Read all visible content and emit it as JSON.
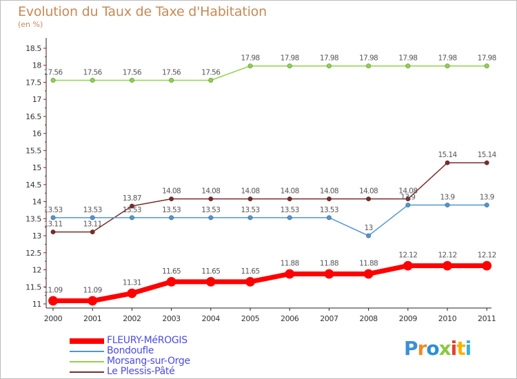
{
  "title": "Evolution du Taux de Taxe d'Habitation",
  "unit_label": "(en %)",
  "logo": {
    "text": "Proxiti"
  },
  "chart_data": {
    "type": "line",
    "x": [
      "2000",
      "2001",
      "2002",
      "2003",
      "2004",
      "2005",
      "2006",
      "2007",
      "2008",
      "2009",
      "2010",
      "2011"
    ],
    "ylim": [
      10.9,
      18.5
    ],
    "yticks": [
      "11",
      "11.5",
      "12",
      "12.5",
      "13",
      "13.5",
      "14",
      "14.5",
      "15",
      "15.5",
      "16",
      "16.5",
      "17",
      "17.5",
      "18",
      "18.5"
    ],
    "grid": false,
    "legend_position": "bottom-left",
    "series": [
      {
        "name": "FLEURY-MéROGIS",
        "color": "#ff0000",
        "emphasis": true,
        "values": [
          11.09,
          11.09,
          11.31,
          11.65,
          11.65,
          11.65,
          11.88,
          11.88,
          11.88,
          12.12,
          12.12,
          12.12
        ],
        "labels": [
          "11.09",
          "11.09",
          "11.31",
          "11.65",
          "11.65",
          "11.65",
          "11.88",
          "11.88",
          "11.88",
          "12.12",
          "12.12",
          "12.12"
        ]
      },
      {
        "name": "Bondoufle",
        "color": "#4f96d2",
        "values": [
          13.53,
          13.53,
          13.53,
          13.53,
          13.53,
          13.53,
          13.53,
          13.53,
          13.0,
          13.9,
          13.9,
          13.9
        ],
        "labels": [
          "13.53",
          "13.53",
          "13.53",
          "13.53",
          "13.53",
          "13.53",
          "13.53",
          "13.53",
          "13",
          "13.9",
          "13.9",
          "13.9"
        ]
      },
      {
        "name": "Morsang-sur-Orge",
        "color": "#8fd34a",
        "values": [
          17.56,
          17.56,
          17.56,
          17.56,
          17.56,
          17.98,
          17.98,
          17.98,
          17.98,
          17.98,
          17.98,
          17.98
        ],
        "labels": [
          "17.56",
          "17.56",
          "17.56",
          "17.56",
          "17.56",
          "17.98",
          "17.98",
          "17.98",
          "17.98",
          "17.98",
          "17.98",
          "17.98"
        ]
      },
      {
        "name": "Le Plessis-Pâté",
        "color": "#7a2b2b",
        "values": [
          13.11,
          13.11,
          13.87,
          14.08,
          14.08,
          14.08,
          14.08,
          14.08,
          14.08,
          14.08,
          15.14,
          15.14
        ],
        "labels": [
          "13.11",
          "13.11",
          "13.87",
          "14.08",
          "14.08",
          "14.08",
          "14.08",
          "14.08",
          "14.08",
          "14.08",
          "15.14",
          "15.14"
        ]
      }
    ]
  }
}
